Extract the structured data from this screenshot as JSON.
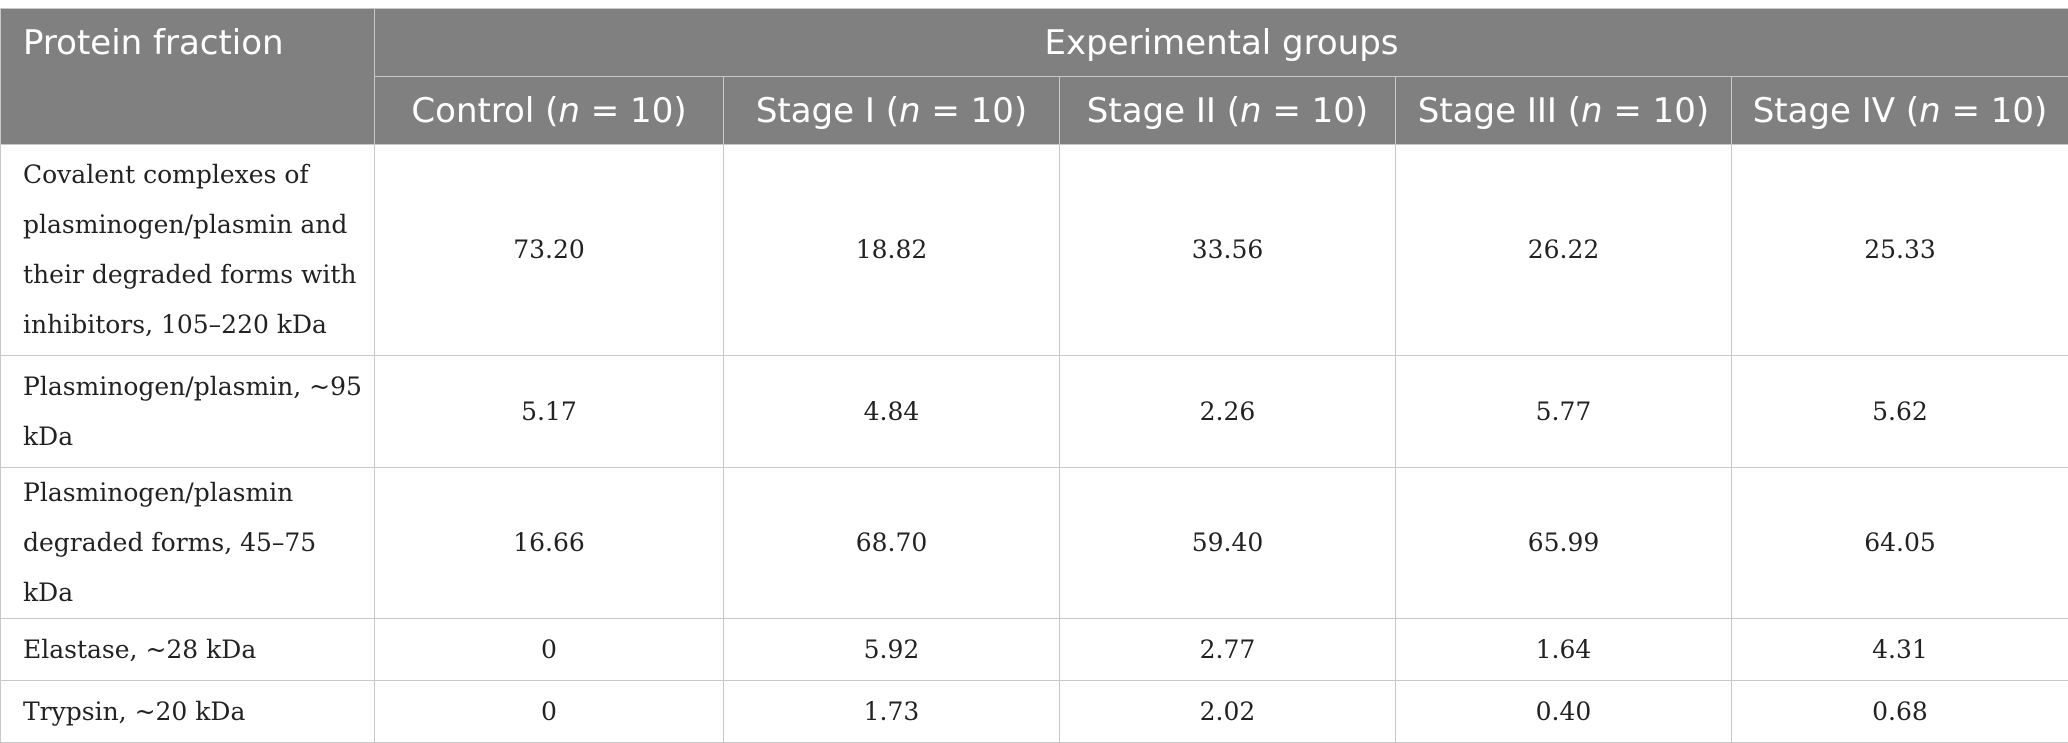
{
  "header": {
    "protein_fraction": "Protein fraction",
    "experimental_groups": "Experimental groups",
    "groups": [
      {
        "prefix": "Control (",
        "n": "n",
        "suffix": " = 10)"
      },
      {
        "prefix": "Stage I (",
        "n": "n",
        "suffix": " = 10)"
      },
      {
        "prefix": "Stage II (",
        "n": "n",
        "suffix": " = 10)"
      },
      {
        "prefix": "Stage III (",
        "n": "n",
        "suffix": " = 10)"
      },
      {
        "prefix": "Stage IV (",
        "n": "n",
        "suffix": " = 10)"
      }
    ]
  },
  "rows": [
    {
      "label": "Covalent complexes of plasminogen/plasmin and their degraded forms with inhibitors, 105–220 kDa",
      "values": [
        "73.20",
        "18.82",
        "33.56",
        "26.22",
        "25.33"
      ]
    },
    {
      "label": "Plasminogen/plasmin, ~95 kDa",
      "values": [
        "5.17",
        "4.84",
        "2.26",
        "5.77",
        "5.62"
      ]
    },
    {
      "label": "Plasminogen/plasmin degraded forms, 45–75 kDa",
      "values": [
        "16.66",
        "68.70",
        "59.40",
        "65.99",
        "64.05"
      ]
    },
    {
      "label": "Elastase, ~28 kDa",
      "values": [
        "0",
        "5.92",
        "2.77",
        "1.64",
        "4.31"
      ]
    },
    {
      "label": "Trypsin, ~20 kDa",
      "values": [
        "0",
        "1.73",
        "2.02",
        "0.40",
        "0.68"
      ]
    }
  ]
}
